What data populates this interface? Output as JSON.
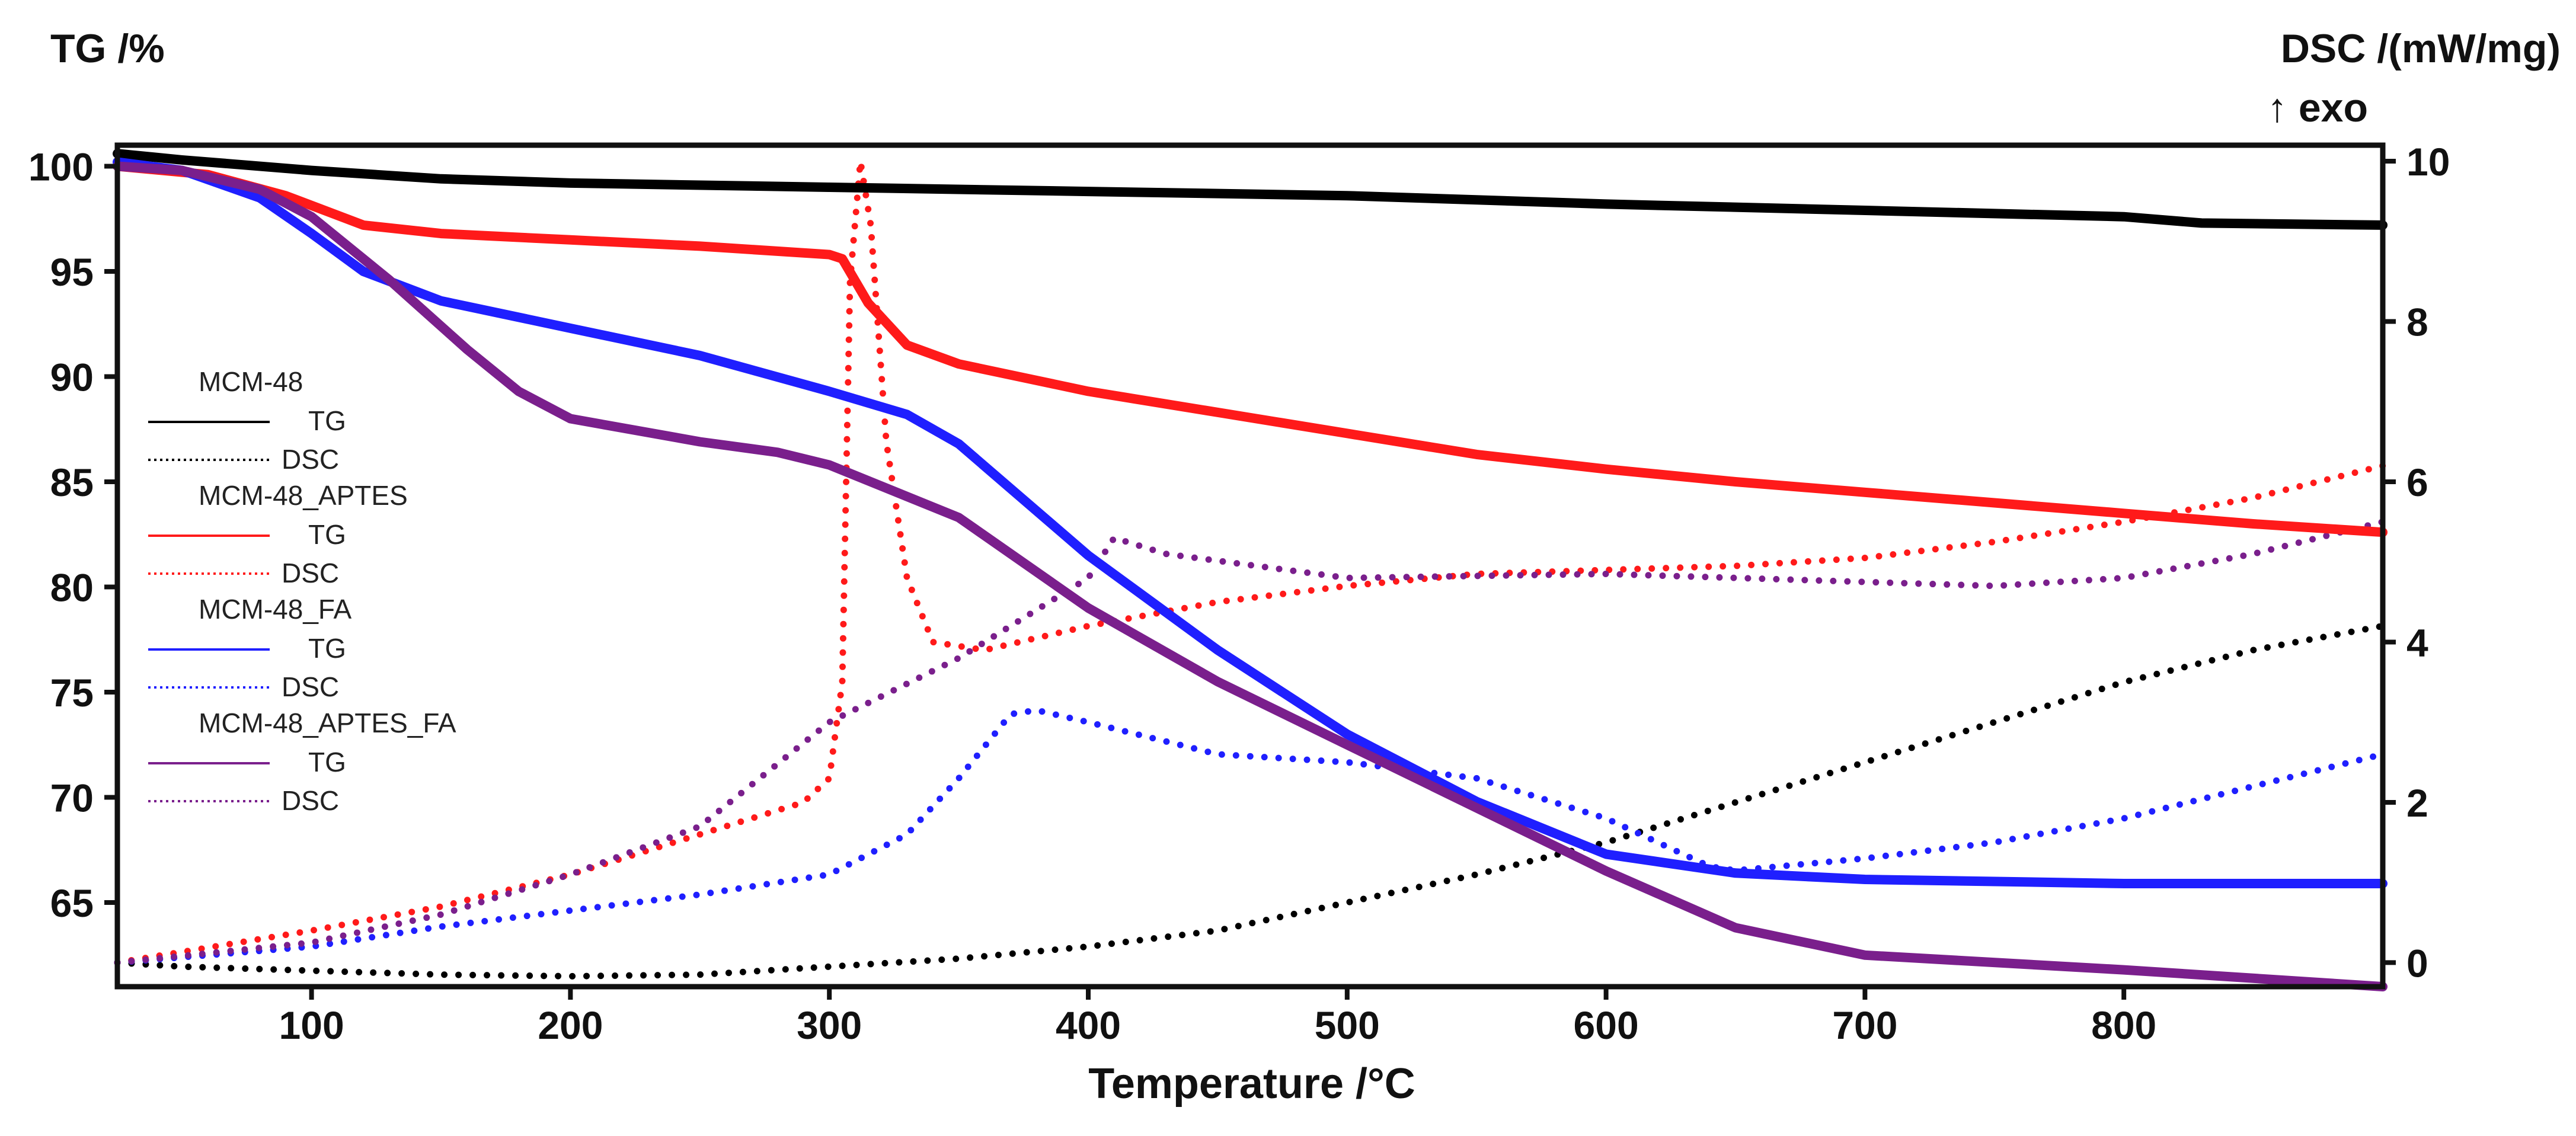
{
  "chart_data": {
    "type": "line",
    "left_axis_title": "TG /%",
    "right_axis_title": "DSC /(mW/mg)",
    "right_axis_subtitle": "↑ exo",
    "xlabel": "Temperature /°C",
    "xlim": [
      25,
      900
    ],
    "ylim_left": [
      61,
      101
    ],
    "ylim_right": [
      -0.3,
      10.2
    ],
    "x_ticks": [
      100,
      200,
      300,
      400,
      500,
      600,
      700,
      800
    ],
    "y_ticks_left": [
      65,
      70,
      75,
      80,
      85,
      90,
      95,
      100
    ],
    "y_ticks_right": [
      0,
      2,
      4,
      6,
      8,
      10
    ],
    "series": [
      {
        "name": "MCM-48",
        "color": "#000000",
        "tg_label": "TG",
        "dsc_label": "DSC",
        "tg": [
          [
            25,
            100.6
          ],
          [
            50,
            100.3
          ],
          [
            100,
            99.8
          ],
          [
            150,
            99.4
          ],
          [
            200,
            99.2
          ],
          [
            300,
            99.0
          ],
          [
            400,
            98.8
          ],
          [
            500,
            98.6
          ],
          [
            600,
            98.2
          ],
          [
            700,
            97.9
          ],
          [
            800,
            97.6
          ],
          [
            830,
            97.3
          ],
          [
            900,
            97.2
          ]
        ],
        "dsc": [
          [
            25,
            0.0
          ],
          [
            50,
            -0.05
          ],
          [
            100,
            -0.1
          ],
          [
            150,
            -0.15
          ],
          [
            200,
            -0.17
          ],
          [
            250,
            -0.15
          ],
          [
            300,
            -0.05
          ],
          [
            350,
            0.05
          ],
          [
            400,
            0.2
          ],
          [
            450,
            0.4
          ],
          [
            500,
            0.75
          ],
          [
            550,
            1.1
          ],
          [
            600,
            1.5
          ],
          [
            650,
            2.0
          ],
          [
            700,
            2.5
          ],
          [
            750,
            3.0
          ],
          [
            800,
            3.5
          ],
          [
            850,
            3.9
          ],
          [
            900,
            4.2
          ]
        ]
      },
      {
        "name": "MCM-48_APTES",
        "color": "#ff1a1a",
        "tg_label": "TG",
        "dsc_label": "DSC",
        "tg": [
          [
            25,
            100.0
          ],
          [
            60,
            99.6
          ],
          [
            90,
            98.6
          ],
          [
            120,
            97.2
          ],
          [
            150,
            96.8
          ],
          [
            200,
            96.5
          ],
          [
            250,
            96.2
          ],
          [
            300,
            95.8
          ],
          [
            305,
            95.6
          ],
          [
            315,
            93.5
          ],
          [
            330,
            91.5
          ],
          [
            350,
            90.6
          ],
          [
            400,
            89.3
          ],
          [
            450,
            88.3
          ],
          [
            500,
            87.3
          ],
          [
            550,
            86.3
          ],
          [
            600,
            85.6
          ],
          [
            650,
            85.0
          ],
          [
            700,
            84.5
          ],
          [
            750,
            84.0
          ],
          [
            800,
            83.5
          ],
          [
            850,
            83.0
          ],
          [
            900,
            82.6
          ]
        ],
        "dsc": [
          [
            25,
            0.0
          ],
          [
            100,
            0.4
          ],
          [
            150,
            0.7
          ],
          [
            200,
            1.1
          ],
          [
            250,
            1.6
          ],
          [
            290,
            2.0
          ],
          [
            300,
            2.3
          ],
          [
            305,
            3.5
          ],
          [
            308,
            8.5
          ],
          [
            312,
            10.0
          ],
          [
            316,
            9.2
          ],
          [
            322,
            6.5
          ],
          [
            330,
            4.8
          ],
          [
            340,
            4.0
          ],
          [
            360,
            3.9
          ],
          [
            400,
            4.2
          ],
          [
            450,
            4.5
          ],
          [
            500,
            4.7
          ],
          [
            550,
            4.85
          ],
          [
            600,
            4.9
          ],
          [
            650,
            4.95
          ],
          [
            700,
            5.05
          ],
          [
            750,
            5.25
          ],
          [
            800,
            5.5
          ],
          [
            850,
            5.8
          ],
          [
            900,
            6.2
          ]
        ]
      },
      {
        "name": "MCM-48_FA",
        "color": "#1f1fff",
        "tg_label": "TG",
        "dsc_label": "DSC",
        "tg": [
          [
            25,
            100.2
          ],
          [
            50,
            99.8
          ],
          [
            80,
            98.5
          ],
          [
            100,
            96.8
          ],
          [
            120,
            95.0
          ],
          [
            150,
            93.6
          ],
          [
            200,
            92.3
          ],
          [
            250,
            91.0
          ],
          [
            300,
            89.3
          ],
          [
            330,
            88.2
          ],
          [
            350,
            86.8
          ],
          [
            400,
            81.5
          ],
          [
            450,
            77.0
          ],
          [
            500,
            73.0
          ],
          [
            550,
            69.8
          ],
          [
            600,
            67.3
          ],
          [
            650,
            66.4
          ],
          [
            700,
            66.1
          ],
          [
            800,
            65.9
          ],
          [
            900,
            65.9
          ]
        ],
        "dsc": [
          [
            25,
            0.0
          ],
          [
            100,
            0.2
          ],
          [
            150,
            0.45
          ],
          [
            200,
            0.65
          ],
          [
            250,
            0.85
          ],
          [
            300,
            1.1
          ],
          [
            330,
            1.6
          ],
          [
            350,
            2.3
          ],
          [
            370,
            3.1
          ],
          [
            380,
            3.15
          ],
          [
            400,
            3.0
          ],
          [
            450,
            2.6
          ],
          [
            500,
            2.5
          ],
          [
            550,
            2.3
          ],
          [
            600,
            1.8
          ],
          [
            640,
            1.2
          ],
          [
            650,
            1.15
          ],
          [
            700,
            1.3
          ],
          [
            750,
            1.5
          ],
          [
            800,
            1.8
          ],
          [
            850,
            2.2
          ],
          [
            900,
            2.6
          ]
        ]
      },
      {
        "name": "MCM-48_APTES_FA",
        "color": "#7a1f8c",
        "tg_label": "TG",
        "dsc_label": "DSC",
        "tg": [
          [
            25,
            100.0
          ],
          [
            50,
            99.8
          ],
          [
            80,
            98.9
          ],
          [
            100,
            97.6
          ],
          [
            130,
            94.6
          ],
          [
            160,
            91.3
          ],
          [
            180,
            89.3
          ],
          [
            200,
            88.0
          ],
          [
            250,
            86.9
          ],
          [
            280,
            86.4
          ],
          [
            300,
            85.8
          ],
          [
            350,
            83.3
          ],
          [
            400,
            79.0
          ],
          [
            450,
            75.5
          ],
          [
            500,
            72.5
          ],
          [
            550,
            69.5
          ],
          [
            600,
            66.5
          ],
          [
            650,
            63.8
          ],
          [
            700,
            62.5
          ],
          [
            800,
            61.8
          ],
          [
            900,
            61.0
          ]
        ],
        "dsc": [
          [
            25,
            0.0
          ],
          [
            100,
            0.25
          ],
          [
            150,
            0.6
          ],
          [
            200,
            1.1
          ],
          [
            250,
            1.7
          ],
          [
            300,
            3.0
          ],
          [
            350,
            3.8
          ],
          [
            400,
            4.8
          ],
          [
            410,
            5.3
          ],
          [
            430,
            5.1
          ],
          [
            500,
            4.8
          ],
          [
            600,
            4.85
          ],
          [
            700,
            4.75
          ],
          [
            750,
            4.7
          ],
          [
            800,
            4.8
          ],
          [
            850,
            5.1
          ],
          [
            900,
            5.5
          ]
        ]
      }
    ]
  }
}
